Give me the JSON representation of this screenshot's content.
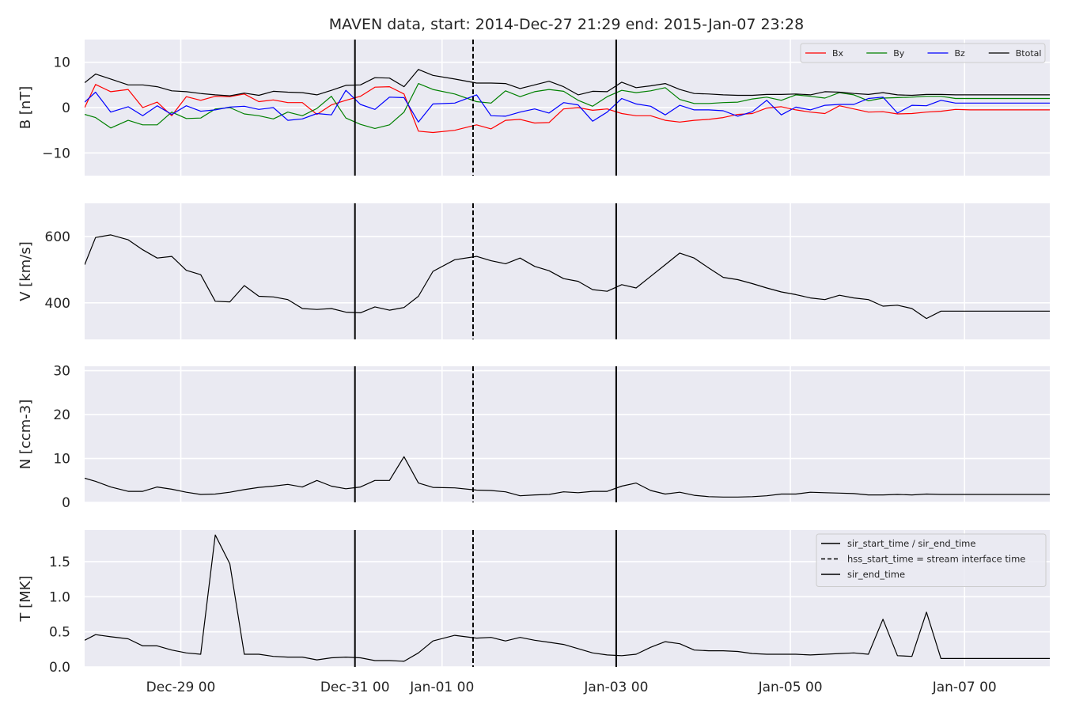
{
  "title": "MAVEN data, start: 2014-Dec-27 21:29  end: 2015-Jan-07 23:28",
  "colors": {
    "plot_bg": "#EAEAF2",
    "grid": "#FFFFFF",
    "text": "#262626",
    "bx": "#FF0000",
    "by": "#008000",
    "bz": "#0000FF",
    "btotal": "#000000",
    "event_line": "#000000"
  },
  "events": [
    {
      "name": "sir_start_time",
      "day": 3.104,
      "style": "solid"
    },
    {
      "name": "hss_start_time",
      "day": 4.46,
      "style": "dashed"
    },
    {
      "name": "sir_end_time",
      "day": 6.104,
      "style": "solid"
    }
  ],
  "chart_data": [
    {
      "type": "line",
      "ylabel": "B [nT]",
      "ylim": [
        -15,
        15
      ],
      "yticks": [
        -10,
        0,
        10
      ],
      "ytick_labels": [
        "−10",
        "0",
        "10"
      ],
      "xlim_days": [
        0,
        11.083
      ],
      "xtick_days": [
        1.104,
        3.104,
        4.104,
        6.104,
        8.104,
        10.104
      ],
      "xtick_labels": [
        "",
        "",
        "",
        "",
        "",
        ""
      ],
      "grid": true,
      "legend": {
        "placement": "top-right",
        "columns": 4,
        "entries": [
          {
            "label": "Bx",
            "color": "#FF0000",
            "style": "solid"
          },
          {
            "label": "By",
            "color": "#008000",
            "style": "solid"
          },
          {
            "label": "Bz",
            "color": "#0000FF",
            "style": "solid"
          },
          {
            "label": "Btotal",
            "color": "#000000",
            "style": "solid"
          }
        ]
      },
      "x_days": [
        0,
        0.125,
        0.3,
        0.5,
        0.667,
        0.833,
        1,
        1.167,
        1.333,
        1.5,
        1.667,
        1.833,
        2,
        2.167,
        2.333,
        2.5,
        2.667,
        2.833,
        3,
        3.167,
        3.333,
        3.5,
        3.667,
        3.833,
        4,
        4.25,
        4.5,
        4.667,
        4.833,
        5,
        5.167,
        5.333,
        5.5,
        5.667,
        5.833,
        6,
        6.167,
        6.333,
        6.5,
        6.667,
        6.833,
        7,
        7.167,
        7.333,
        7.5,
        7.667,
        7.833,
        8,
        8.167,
        8.333,
        8.5,
        8.667,
        8.833,
        9,
        9.167,
        9.333,
        9.5,
        9.667,
        9.833,
        10,
        10.167,
        10.333,
        10.5,
        10.667,
        10.833,
        11,
        11.083
      ],
      "series": [
        {
          "name": "Bx",
          "color": "#FF0000",
          "values": [
            0,
            5.1,
            3.5,
            4,
            0,
            1.2,
            -1.8,
            2.4,
            1.6,
            2.5,
            2.4,
            3,
            1.3,
            1.7,
            1.1,
            1.1,
            -1.5,
            0.6,
            1.6,
            2.5,
            4.5,
            4.6,
            3,
            -5.2,
            -5.5,
            -5,
            -3.8,
            -4.7,
            -2.8,
            -2.6,
            -3.4,
            -3.3,
            -0.3,
            0,
            -0.6,
            -0.3,
            -1.3,
            -1.8,
            -1.8,
            -2.8,
            -3.2,
            -2.8,
            -2.6,
            -2.2,
            -1.5,
            -1.3,
            -0.1,
            0.2,
            -0.5,
            -1,
            -1.3,
            0.4,
            -0.3,
            -1,
            -0.9,
            -1.4,
            -1.3,
            -1,
            -0.8,
            -0.4,
            -0.5,
            -0.5,
            -0.5,
            -0.5,
            -0.5,
            -0.5,
            -0.5
          ]
        },
        {
          "name": "By",
          "color": "#008000",
          "values": [
            -1.5,
            -2.2,
            -4.5,
            -2.8,
            -3.8,
            -3.8,
            -1,
            -2.4,
            -2.3,
            -0.3,
            0,
            -1.4,
            -1.8,
            -2.5,
            -1,
            -1.8,
            -0.2,
            2.5,
            -2.3,
            -3.7,
            -4.6,
            -3.8,
            -1,
            5.3,
            4,
            3,
            1.3,
            1,
            3.7,
            2.4,
            3.5,
            4,
            3.6,
            1.6,
            0.3,
            2.4,
            3.8,
            3.3,
            3.7,
            4.4,
            1.8,
            0.9,
            0.9,
            1.1,
            1.2,
            1.9,
            2.3,
            1.6,
            2.8,
            2.5,
            2.1,
            3.3,
            2.8,
            1.5,
            2.1,
            2.2,
            2.3,
            2.5,
            2.5,
            2,
            2,
            2,
            2,
            2,
            2,
            2,
            2
          ]
        },
        {
          "name": "Bz",
          "color": "#0000FF",
          "values": [
            1.2,
            3.4,
            -1,
            0.2,
            -1.8,
            0.4,
            -1.5,
            0.4,
            -0.8,
            -0.5,
            0.1,
            0.3,
            -0.4,
            0,
            -2.8,
            -2.5,
            -1.3,
            -1.6,
            3.8,
            0.7,
            -0.4,
            2.3,
            2.2,
            -3.2,
            0.8,
            1,
            2.8,
            -1.8,
            -1.9,
            -1,
            -0.3,
            -1.2,
            1.1,
            0.6,
            -3,
            -1,
            2,
            0.8,
            0.3,
            -1.6,
            0.5,
            -0.5,
            -0.5,
            -0.7,
            -1.9,
            -0.9,
            1.6,
            -1.6,
            0.1,
            -0.5,
            0.5,
            0.7,
            0.7,
            2,
            2.3,
            -1.2,
            0.5,
            0.4,
            1.6,
            1,
            1,
            1,
            1,
            1,
            1,
            1,
            1
          ]
        },
        {
          "name": "Btotal",
          "color": "#000000",
          "values": [
            5.5,
            7.4,
            6.3,
            5,
            5,
            4.6,
            3.7,
            3.5,
            3.1,
            2.8,
            2.6,
            3.2,
            2.7,
            3.6,
            3.4,
            3.3,
            2.8,
            3.8,
            4.9,
            5,
            6.6,
            6.5,
            4.6,
            8.4,
            7.1,
            6.3,
            5.4,
            5.4,
            5.3,
            4.2,
            5,
            5.8,
            4.6,
            2.8,
            3.6,
            3.5,
            5.6,
            4.4,
            4.8,
            5.3,
            4,
            3.1,
            3,
            2.8,
            2.7,
            2.7,
            2.9,
            2.9,
            3,
            2.8,
            3.5,
            3.4,
            3.1,
            2.9,
            3.3,
            2.8,
            2.7,
            2.9,
            2.9,
            2.8,
            2.8,
            2.8,
            2.8,
            2.8,
            2.8,
            2.8,
            2.8
          ]
        }
      ]
    },
    {
      "type": "line",
      "ylabel": "V [km/s]",
      "ylim": [
        290,
        700
      ],
      "yticks": [
        400,
        600
      ],
      "ytick_labels": [
        "400",
        "600"
      ],
      "xlim_days": [
        0,
        11.083
      ],
      "xtick_days": [
        1.104,
        3.104,
        4.104,
        6.104,
        8.104,
        10.104
      ],
      "xtick_labels": [
        "",
        "",
        "",
        "",
        "",
        ""
      ],
      "grid": true,
      "x_days": [
        0,
        0.125,
        0.3,
        0.5,
        0.667,
        0.833,
        1,
        1.167,
        1.333,
        1.5,
        1.667,
        1.833,
        2,
        2.167,
        2.333,
        2.5,
        2.667,
        2.833,
        3,
        3.167,
        3.333,
        3.5,
        3.667,
        3.833,
        4,
        4.25,
        4.5,
        4.667,
        4.833,
        5,
        5.167,
        5.333,
        5.5,
        5.667,
        5.833,
        6,
        6.167,
        6.333,
        6.5,
        6.667,
        6.833,
        7,
        7.167,
        7.333,
        7.5,
        7.667,
        7.833,
        8,
        8.167,
        8.333,
        8.5,
        8.667,
        8.833,
        9,
        9.167,
        9.333,
        9.5,
        9.667,
        9.833,
        10,
        10.167,
        10.333,
        10.5,
        10.667,
        10.833,
        11,
        11.083
      ],
      "series": [
        {
          "color": "#000000",
          "values": [
            515,
            597,
            605,
            590,
            560,
            535,
            540,
            498,
            485,
            405,
            403,
            452,
            420,
            418,
            410,
            383,
            380,
            383,
            372,
            370,
            388,
            378,
            386,
            420,
            495,
            530,
            540,
            527,
            518,
            535,
            510,
            497,
            473,
            465,
            440,
            435,
            455,
            445,
            480,
            515,
            550,
            535,
            505,
            477,
            470,
            458,
            445,
            433,
            425,
            415,
            410,
            423,
            415,
            410,
            390,
            393,
            383,
            353,
            375,
            375,
            375,
            375,
            375,
            375,
            375,
            375,
            375
          ]
        }
      ]
    },
    {
      "type": "line",
      "ylabel": "N [ccm-3]",
      "ylim": [
        0,
        31
      ],
      "yticks": [
        0,
        10,
        20,
        30
      ],
      "ytick_labels": [
        "0",
        "10",
        "20",
        "30"
      ],
      "xlim_days": [
        0,
        11.083
      ],
      "xtick_days": [
        1.104,
        3.104,
        4.104,
        6.104,
        8.104,
        10.104
      ],
      "xtick_labels": [
        "",
        "",
        "",
        "",
        "",
        ""
      ],
      "grid": true,
      "x_days": [
        0,
        0.125,
        0.3,
        0.5,
        0.667,
        0.833,
        1,
        1.167,
        1.333,
        1.5,
        1.667,
        1.833,
        2,
        2.167,
        2.333,
        2.5,
        2.667,
        2.833,
        3,
        3.167,
        3.333,
        3.5,
        3.667,
        3.833,
        4,
        4.25,
        4.5,
        4.667,
        4.833,
        5,
        5.167,
        5.333,
        5.5,
        5.667,
        5.833,
        6,
        6.167,
        6.333,
        6.5,
        6.667,
        6.833,
        7,
        7.167,
        7.333,
        7.5,
        7.667,
        7.833,
        8,
        8.167,
        8.333,
        8.5,
        8.667,
        8.833,
        9,
        9.167,
        9.333,
        9.5,
        9.667,
        9.833,
        10,
        10.167,
        10.333,
        10.5,
        10.667,
        10.833,
        11,
        11.083
      ],
      "series": [
        {
          "color": "#000000",
          "values": [
            5.5,
            4.8,
            3.5,
            2.5,
            2.5,
            3.5,
            3,
            2.3,
            1.8,
            1.9,
            2.3,
            2.9,
            3.4,
            3.7,
            4.1,
            3.5,
            5,
            3.7,
            3.1,
            3.5,
            5,
            5,
            10.4,
            4.4,
            3.4,
            3.3,
            2.8,
            2.7,
            2.4,
            1.5,
            1.7,
            1.8,
            2.4,
            2.2,
            2.5,
            2.5,
            3.7,
            4.4,
            2.7,
            1.9,
            2.3,
            1.6,
            1.3,
            1.2,
            1.2,
            1.3,
            1.5,
            1.9,
            1.9,
            2.3,
            2.2,
            2.1,
            2,
            1.7,
            1.7,
            1.8,
            1.7,
            1.9,
            1.8,
            1.8,
            1.8,
            1.8,
            1.8,
            1.8,
            1.8,
            1.8,
            1.8
          ]
        }
      ]
    },
    {
      "type": "line",
      "ylabel": "T [MK]",
      "ylim": [
        0,
        1.95
      ],
      "yticks": [
        0,
        0.5,
        1,
        1.5
      ],
      "ytick_labels": [
        "0.0",
        "0.5",
        "1.0",
        "1.5"
      ],
      "xlim_days": [
        0,
        11.083
      ],
      "xtick_days": [
        1.104,
        3.104,
        4.104,
        6.104,
        8.104,
        10.104
      ],
      "xtick_labels": [
        "Dec-29 00",
        "Dec-31 00",
        "Jan-01 00",
        "Jan-03 00",
        "Jan-05 00",
        "Jan-07 00"
      ],
      "grid": true,
      "legend": {
        "placement": "top-right",
        "columns": 1,
        "entries": [
          {
            "label": "sir_start_time / sir_end_time",
            "color": "#000000",
            "style": "solid"
          },
          {
            "label": "hss_start_time = stream interface time",
            "color": "#000000",
            "style": "dashed"
          },
          {
            "label": "sir_end_time",
            "color": "#000000",
            "style": "solid"
          }
        ]
      },
      "x_days": [
        0,
        0.125,
        0.3,
        0.5,
        0.667,
        0.833,
        1,
        1.167,
        1.333,
        1.5,
        1.667,
        1.833,
        2,
        2.167,
        2.333,
        2.5,
        2.667,
        2.833,
        3,
        3.167,
        3.333,
        3.5,
        3.667,
        3.833,
        4,
        4.25,
        4.5,
        4.667,
        4.833,
        5,
        5.167,
        5.333,
        5.5,
        5.667,
        5.833,
        6,
        6.167,
        6.333,
        6.5,
        6.667,
        6.833,
        7,
        7.167,
        7.333,
        7.5,
        7.667,
        7.833,
        8,
        8.167,
        8.333,
        8.5,
        8.667,
        8.833,
        9,
        9.167,
        9.333,
        9.5,
        9.667,
        9.833,
        10,
        10.167,
        10.333,
        10.5,
        10.667,
        10.833,
        11,
        11.083
      ],
      "series": [
        {
          "color": "#000000",
          "values": [
            0.38,
            0.46,
            0.43,
            0.4,
            0.3,
            0.3,
            0.24,
            0.2,
            0.18,
            1.88,
            1.47,
            0.18,
            0.18,
            0.15,
            0.14,
            0.14,
            0.1,
            0.13,
            0.14,
            0.13,
            0.09,
            0.09,
            0.08,
            0.2,
            0.37,
            0.45,
            0.41,
            0.42,
            0.37,
            0.42,
            0.38,
            0.35,
            0.32,
            0.26,
            0.2,
            0.17,
            0.16,
            0.18,
            0.28,
            0.36,
            0.33,
            0.24,
            0.23,
            0.23,
            0.22,
            0.19,
            0.18,
            0.18,
            0.18,
            0.17,
            0.18,
            0.19,
            0.2,
            0.18,
            0.68,
            0.16,
            0.15,
            0.78,
            0.12,
            0.12,
            0.12,
            0.12,
            0.12,
            0.12,
            0.12,
            0.12,
            0.12
          ]
        }
      ]
    }
  ]
}
